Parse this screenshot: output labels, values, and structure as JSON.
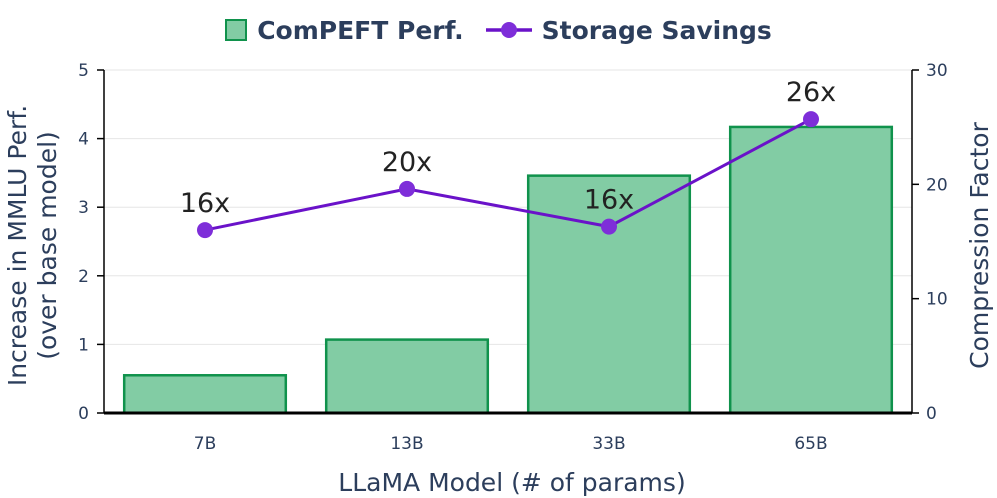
{
  "chart_data": {
    "type": "bar",
    "categories": [
      "7B",
      "13B",
      "33B",
      "65B"
    ],
    "series": [
      {
        "name": "ComPEFT Perf.",
        "type": "bar",
        "axis": "left",
        "values": [
          0.55,
          1.07,
          3.46,
          4.17
        ]
      },
      {
        "name": "Storage Savings",
        "type": "line",
        "axis": "right",
        "values": [
          16,
          19.6,
          16.3,
          25.7
        ]
      }
    ],
    "data_labels": [
      "16x",
      "20x",
      "16x",
      "26x"
    ],
    "xlabel": "LLaMA Model (# of params)",
    "ylabel_lines": [
      "Increase in MMLU Perf.",
      "(over base model)"
    ],
    "y2label": "Compression Factor",
    "ylim": [
      0,
      5
    ],
    "y2lim": [
      0,
      30
    ],
    "yticks": [
      0,
      1,
      2,
      3,
      4,
      5
    ],
    "y2ticks": [
      0,
      10,
      20,
      30
    ],
    "grid": true,
    "legend_position": "top-center",
    "colors": {
      "bar_fill": "#82cca4",
      "bar_edge": "#10924c",
      "line": "#6a12c9",
      "marker": "#7e2ed9",
      "text": "#2c3e5c",
      "grid": "#e6e6e6"
    }
  }
}
